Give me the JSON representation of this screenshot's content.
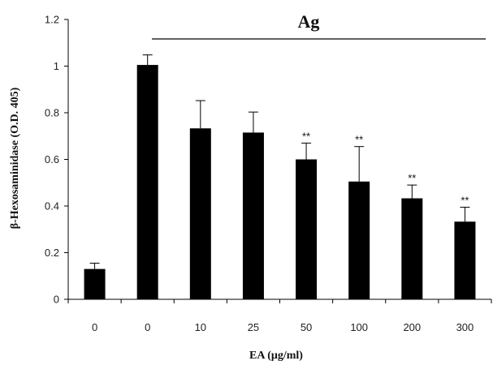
{
  "chart_data": {
    "type": "bar",
    "categories": [
      "0",
      "0",
      "10",
      "25",
      "50",
      "100",
      "200",
      "300"
    ],
    "values": [
      0.13,
      1.005,
      0.733,
      0.715,
      0.6,
      0.505,
      0.433,
      0.333
    ],
    "error_upper": [
      0.155,
      1.048,
      0.852,
      0.803,
      0.67,
      0.655,
      0.49,
      0.395
    ],
    "significance": [
      "",
      "",
      "",
      "",
      "**",
      "**",
      "**",
      "**"
    ],
    "xlabel": "EA (μg/ml)",
    "ylabel": "β-Hexosaminidase (O.D. 405)",
    "ylim": [
      0,
      1.2
    ],
    "yticks": [
      "0",
      "0.2",
      "0.4",
      "0.6",
      "0.8",
      "1",
      "1.2"
    ],
    "group_label": "Ag",
    "grid": false,
    "legend": "none",
    "bar_color": "#000000"
  }
}
